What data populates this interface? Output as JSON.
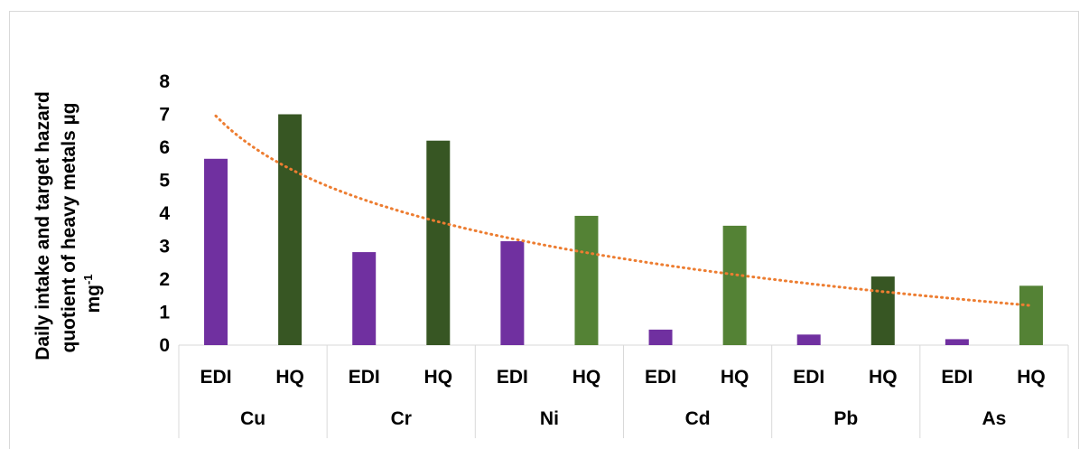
{
  "chart_data": {
    "type": "bar",
    "ylabel_lines": [
      "Daily intake and target hazard",
      "quotient of heavy metals µg",
      "mg"
    ],
    "ylabel_superscript": "-1",
    "ylim": [
      0,
      8
    ],
    "yticks": [
      "0",
      "1",
      "2",
      "3",
      "4",
      "5",
      "6",
      "7",
      "8"
    ],
    "groups": [
      "Cu",
      "Cr",
      "Ni",
      "Cd",
      "Pb",
      "As"
    ],
    "subcategories": [
      "EDI",
      "HQ"
    ],
    "categories": [
      "EDI",
      "HQ",
      "EDI",
      "HQ",
      "EDI",
      "HQ",
      "EDI",
      "HQ",
      "EDI",
      "HQ",
      "EDI",
      "HQ"
    ],
    "values": [
      5.65,
      7.0,
      2.82,
      6.2,
      3.15,
      3.92,
      0.47,
      3.62,
      0.32,
      2.08,
      0.18,
      1.8
    ],
    "bar_colors": [
      "#7030a0",
      "#375623",
      "#7030a0",
      "#375623",
      "#7030a0",
      "#548235",
      "#7030a0",
      "#548235",
      "#7030a0",
      "#375623",
      "#7030a0",
      "#548235"
    ],
    "trendline": {
      "type": "logarithmic",
      "style": "dotted",
      "color": "#ed7d31",
      "start": 6.95,
      "end": 1.2
    },
    "grid": false,
    "legend": "none"
  }
}
